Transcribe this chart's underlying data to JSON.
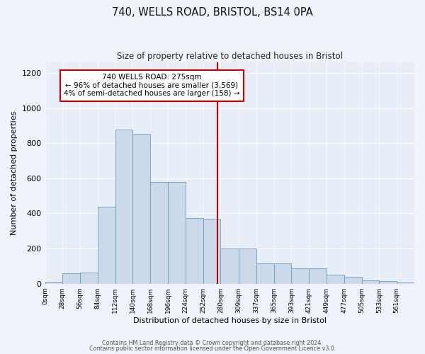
{
  "title": "740, WELLS ROAD, BRISTOL, BS14 0PA",
  "subtitle": "Size of property relative to detached houses in Bristol",
  "xlabel": "Distribution of detached houses by size in Bristol",
  "ylabel": "Number of detached properties",
  "bar_color": "#ccd9ea",
  "bar_edge_color": "#6a9cc0",
  "bg_color": "#e8eef8",
  "grid_color": "#ffffff",
  "annotation_text": "740 WELLS ROAD: 275sqm\n← 96% of detached houses are smaller (3,569)\n4% of semi-detached houses are larger (158) →",
  "vline_x": 275,
  "vline_color": "#cc0000",
  "annotation_box_edge": "#cc0000",
  "categories": [
    "0sqm",
    "28sqm",
    "56sqm",
    "84sqm",
    "112sqm",
    "140sqm",
    "168sqm",
    "196sqm",
    "224sqm",
    "252sqm",
    "280sqm",
    "309sqm",
    "337sqm",
    "365sqm",
    "393sqm",
    "421sqm",
    "449sqm",
    "477sqm",
    "505sqm",
    "533sqm",
    "561sqm"
  ],
  "bin_edges": [
    0,
    28,
    56,
    84,
    112,
    140,
    168,
    196,
    224,
    252,
    280,
    309,
    337,
    365,
    393,
    421,
    449,
    477,
    505,
    533,
    561,
    589
  ],
  "bar_values": [
    10,
    60,
    65,
    440,
    878,
    855,
    580,
    580,
    375,
    370,
    200,
    200,
    115,
    115,
    88,
    88,
    50,
    38,
    20,
    15,
    5
  ],
  "ylim": [
    0,
    1260
  ],
  "yticks": [
    0,
    200,
    400,
    600,
    800,
    1000,
    1200
  ],
  "fig_bg": "#f0f4fa",
  "footer1": "Contains HM Land Registry data © Crown copyright and database right 2024.",
  "footer2": "Contains public sector information licensed under the Open Government Licence v3.0."
}
